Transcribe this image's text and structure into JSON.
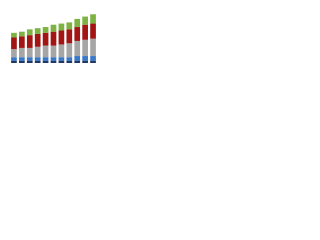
{
  "chart_data": {
    "type": "stacked-bar",
    "categories": [
      null,
      null,
      null,
      null,
      null,
      null,
      null,
      null,
      null,
      null,
      null
    ],
    "series": [
      {
        "color": "#1f3864",
        "values": [
          2,
          2,
          2,
          2,
          2,
          2,
          2,
          2,
          2,
          2,
          2
        ]
      },
      {
        "color": "#3a78c9",
        "values": [
          3,
          3,
          3,
          3,
          3,
          3,
          3,
          3,
          4,
          4,
          4
        ]
      },
      {
        "color": "#a6a6a6",
        "values": [
          7,
          8,
          8,
          9,
          10,
          10,
          11,
          12,
          13,
          14,
          15
        ]
      },
      {
        "color": "#a31515",
        "values": [
          10,
          10,
          11,
          11,
          11,
          12,
          12,
          12,
          12,
          13,
          13
        ]
      },
      {
        "color": "#7cb342",
        "values": [
          4,
          4,
          5,
          5,
          5,
          6,
          6,
          6,
          7,
          7,
          8
        ]
      }
    ],
    "ylim": [
      0,
      50
    ]
  }
}
